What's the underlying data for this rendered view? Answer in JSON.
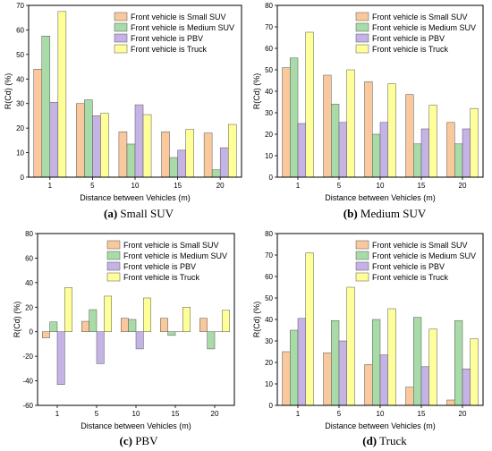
{
  "legend_names": [
    "Front vehicle is Small SUV",
    "Front vehicle is Medium SUV",
    "Front vehicle is PBV",
    "Front vehicle is Truck"
  ],
  "series_colors": [
    "#f9c89c",
    "#a8dba8",
    "#c5b3e6",
    "#ffff99"
  ],
  "chart_data": [
    {
      "type": "bar",
      "caption_letter": "(a)",
      "caption_text": "Small SUV",
      "xlabel": "Distance between Vehicles (m)",
      "ylabel": "R(Cd) (%)",
      "categories": [
        "1",
        "5",
        "10",
        "15",
        "20"
      ],
      "ylim": [
        0,
        70
      ],
      "yticks": [
        0,
        10,
        20,
        30,
        40,
        50,
        60,
        70
      ],
      "legend": "top-right",
      "series": [
        {
          "name": "Front vehicle is Small SUV",
          "values": [
            44,
            30,
            18.5,
            18.5,
            18
          ]
        },
        {
          "name": "Front vehicle is Medium SUV",
          "values": [
            57.5,
            31.5,
            13.5,
            8,
            3
          ]
        },
        {
          "name": "Front vehicle is PBV",
          "values": [
            30.5,
            25,
            29.5,
            11,
            12
          ]
        },
        {
          "name": "Front vehicle is Truck",
          "values": [
            67.5,
            26,
            25.5,
            19.5,
            21.5
          ]
        }
      ]
    },
    {
      "type": "bar",
      "caption_letter": "(b)",
      "caption_text": "Medium SUV",
      "xlabel": "Distance between Vehicles (m)",
      "ylabel": "R(Cd) (%)",
      "categories": [
        "1",
        "5",
        "10",
        "15",
        "20"
      ],
      "ylim": [
        0,
        80
      ],
      "yticks": [
        0,
        10,
        20,
        30,
        40,
        50,
        60,
        70,
        80
      ],
      "legend": "top-right",
      "series": [
        {
          "name": "Front vehicle is Small SUV",
          "values": [
            51,
            47.5,
            44.5,
            38.5,
            25.5
          ]
        },
        {
          "name": "Front vehicle is Medium SUV",
          "values": [
            55.5,
            34,
            20,
            15.5,
            15.5
          ]
        },
        {
          "name": "Front vehicle is PBV",
          "values": [
            25,
            25.5,
            25.5,
            22.5,
            22.5
          ]
        },
        {
          "name": "Front vehicle is Truck",
          "values": [
            67.5,
            50,
            43.5,
            33.5,
            32
          ]
        }
      ]
    },
    {
      "type": "bar",
      "caption_letter": "(c)",
      "caption_text": "PBV",
      "xlabel": "Distance between Vehicles (m)",
      "ylabel": "R(Cd) (%)",
      "categories": [
        "1",
        "5",
        "10",
        "15",
        "20"
      ],
      "ylim": [
        -60,
        80
      ],
      "yticks": [
        -60,
        -40,
        -20,
        0,
        20,
        40,
        60,
        80
      ],
      "legend": "top-right",
      "series": [
        {
          "name": "Front vehicle is Small SUV",
          "values": [
            -5,
            8.5,
            11,
            11,
            11
          ]
        },
        {
          "name": "Front vehicle is Medium SUV",
          "values": [
            8,
            18,
            10,
            -3,
            -14
          ]
        },
        {
          "name": "Front vehicle is PBV",
          "values": [
            -43,
            -26,
            -14,
            0,
            0
          ]
        },
        {
          "name": "Front vehicle is Truck",
          "values": [
            36,
            29,
            27.5,
            20,
            17.5
          ]
        }
      ]
    },
    {
      "type": "bar",
      "caption_letter": "(d)",
      "caption_text": "Truck",
      "xlabel": "Distance between Vehicles (m)",
      "ylabel": "R(Cd) (%)",
      "categories": [
        "1",
        "5",
        "10",
        "15",
        "20"
      ],
      "ylim": [
        0,
        80
      ],
      "yticks": [
        0,
        10,
        20,
        30,
        40,
        50,
        60,
        70,
        80
      ],
      "legend": "top-right",
      "series": [
        {
          "name": "Front vehicle is Small SUV",
          "values": [
            25,
            24.5,
            19,
            8.5,
            2.5
          ]
        },
        {
          "name": "Front vehicle is Medium SUV",
          "values": [
            35,
            39.5,
            40,
            41,
            39.5
          ]
        },
        {
          "name": "Front vehicle is PBV",
          "values": [
            40.5,
            30,
            23.5,
            18,
            17
          ]
        },
        {
          "name": "Front vehicle is Truck",
          "values": [
            71,
            55,
            45,
            35.5,
            31
          ]
        }
      ]
    }
  ]
}
